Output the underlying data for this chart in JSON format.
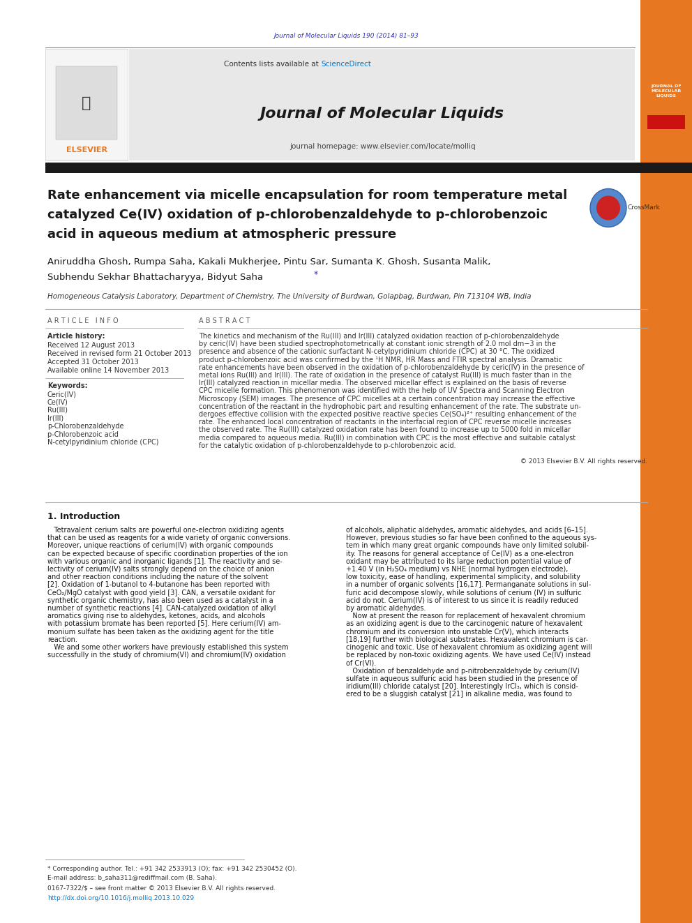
{
  "page_width": 9.92,
  "page_height": 13.23,
  "bg_color": "#ffffff",
  "header_journal_ref": "Journal of Molecular Liquids 190 (2014) 81–93",
  "header_ref_color": "#3333cc",
  "header_bar_orange_color": "#e87722",
  "elsevier_text": "ELSEVIER",
  "elsevier_color": "#e87722",
  "journal_header_bg": "#e8e8e8",
  "contents_text": "Contents lists available at ",
  "sciencedirect_text": "ScienceDirect",
  "sciencedirect_color": "#0077cc",
  "journal_name": "Journal of Molecular Liquids",
  "journal_homepage": "journal homepage: www.elsevier.com/locate/molliq",
  "black_bar_color": "#1a1a1a",
  "article_title_line1": "Rate enhancement via micelle encapsulation for room temperature metal",
  "article_title_line2": "catalyzed Ce(IV) oxidation of p-chlorobenzaldehyde to p-chlorobenzoic",
  "article_title_line3": "acid in aqueous medium at atmospheric pressure",
  "authors": "Aniruddha Ghosh, Rumpa Saha, Kakali Mukherjee, Pintu Sar, Sumanta K. Ghosh, Susanta Malik,",
  "authors2": "Subhendu Sekhar Bhattacharyya, Bidyut Saha",
  "affiliation": "Homogeneous Catalysis Laboratory, Department of Chemistry, The University of Burdwan, Golapbag, Burdwan, Pin 713104 WB, India",
  "article_info_header": "A R T I C L E   I N F O",
  "article_history_header": "Article history:",
  "received_text": "Received 12 August 2013",
  "revised_text": "Received in revised form 21 October 2013",
  "accepted_text": "Accepted 31 October 2013",
  "available_text": "Available online 14 November 2013",
  "keywords_header": "Keywords:",
  "keywords": [
    "Ceric(IV)",
    "Ce(IV)",
    "Ru(III)",
    "Ir(III)",
    "p-Chlorobenzaldehyde",
    "p-Chlorobenzoic acid",
    "N-cetylpyridinium chloride (CPC)"
  ],
  "abstract_header": "A B S T R A C T",
  "abstract_lines": [
    "The kinetics and mechanism of the Ru(III) and Ir(III) catalyzed oxidation reaction of p-chlorobenzaldehyde",
    "by ceric(IV) have been studied spectrophotometrically at constant ionic strength of 2.0 mol dm−3 in the",
    "presence and absence of the cationic surfactant N-cetylpyridinium chloride (CPC) at 30 °C. The oxidized",
    "product p-chlorobenzoic acid was confirmed by the ¹H NMR, HR Mass and FTIR spectral analysis. Dramatic",
    "rate enhancements have been observed in the oxidation of p-chlorobenzaldehyde by ceric(IV) in the presence of",
    "metal ions Ru(III) and Ir(III). The rate of oxidation in the presence of catalyst Ru(III) is much faster than in the",
    "Ir(III) catalyzed reaction in micellar media. The observed micellar effect is explained on the basis of reverse",
    "CPC micelle formation. This phenomenon was identified with the help of UV Spectra and Scanning Electron",
    "Microscopy (SEM) images. The presence of CPC micelles at a certain concentration may increase the effective",
    "concentration of the reactant in the hydrophobic part and resulting enhancement of the rate. The substrate un-",
    "dergoes effective collision with the expected positive reactive species Ce(SO₄)²⁺ resulting enhancement of the",
    "rate. The enhanced local concentration of reactants in the interfacial region of CPC reverse micelle increases",
    "the observed rate. The Ru(III) catalyzed oxidation rate has been found to increase up to 5000 fold in micellar",
    "media compared to aqueous media. Ru(III) in combination with CPC is the most effective and suitable catalyst",
    "for the catalytic oxidation of p-chlorobenzaldehyde to p-chlorobenzoic acid."
  ],
  "copyright_text": "© 2013 Elsevier B.V. All rights reserved.",
  "intro_header": "1. Introduction",
  "intro_col1_lines": [
    "   Tetravalent cerium salts are powerful one-electron oxidizing agents",
    "that can be used as reagents for a wide variety of organic conversions.",
    "Moreover, unique reactions of cerium(IV) with organic compounds",
    "can be expected because of specific coordination properties of the ion",
    "with various organic and inorganic ligands [1]. The reactivity and se-",
    "lectivity of cerium(IV) salts strongly depend on the choice of anion",
    "and other reaction conditions including the nature of the solvent",
    "[2]. Oxidation of 1-butanol to 4-butanone has been reported with",
    "CeO₂/MgO catalyst with good yield [3]. CAN, a versatile oxidant for",
    "synthetic organic chemistry, has also been used as a catalyst in a",
    "number of synthetic reactions [4]. CAN-catalyzed oxidation of alkyl",
    "aromatics giving rise to aldehydes, ketones, acids, and alcohols",
    "with potassium bromate has been reported [5]. Here cerium(IV) am-",
    "monium sulfate has been taken as the oxidizing agent for the title",
    "reaction.",
    "   We and some other workers have previously established this system",
    "successfully in the study of chromium(VI) and chromium(IV) oxidation"
  ],
  "intro_col2_lines": [
    "of alcohols, aliphatic aldehydes, aromatic aldehydes, and acids [6–15].",
    "However, previous studies so far have been confined to the aqueous sys-",
    "tem in which many great organic compounds have only limited solubil-",
    "ity. The reasons for general acceptance of Ce(IV) as a one-electron",
    "oxidant may be attributed to its large reduction potential value of",
    "+1.40 V (in H₂SO₄ medium) vs NHE (normal hydrogen electrode),",
    "low toxicity, ease of handling, experimental simplicity, and solubility",
    "in a number of organic solvents [16,17]. Permanganate solutions in sul-",
    "furic acid decompose slowly, while solutions of cerium (IV) in sulfuric",
    "acid do not. Cerium(IV) is of interest to us since it is readily reduced",
    "by aromatic aldehydes.",
    "   Now at present the reason for replacement of hexavalent chromium",
    "as an oxidizing agent is due to the carcinogenic nature of hexavalent",
    "chromium and its conversion into unstable Cr(V), which interacts",
    "[18,19] further with biological substrates. Hexavalent chromium is car-",
    "cinogenic and toxic. Use of hexavalent chromium as oxidizing agent will",
    "be replaced by non-toxic oxidizing agents. We have used Ce(IV) instead",
    "of Cr(VI).",
    "   Oxidation of benzaldehyde and p-nitrobenzaldehyde by cerium(IV)",
    "sulfate in aqueous sulfuric acid has been studied in the presence of",
    "iridium(III) chloride catalyst [20]. Interestingly IrCl₃, which is consid-",
    "ered to be a sluggish catalyst [21] in alkaline media, was found to"
  ],
  "footnote1": "* Corresponding author. Tel.: +91 342 2533913 (O); fax: +91 342 2530452 (O).",
  "footnote2": "E-mail address: b_saha311@rediffmail.com (B. Saha).",
  "footnote3": "0167-7322/$ – see front matter © 2013 Elsevier B.V. All rights reserved.",
  "footnote4": "http://dx.doi.org/10.1016/j.molliq.2013.10.029",
  "footnote4_color": "#0077cc"
}
